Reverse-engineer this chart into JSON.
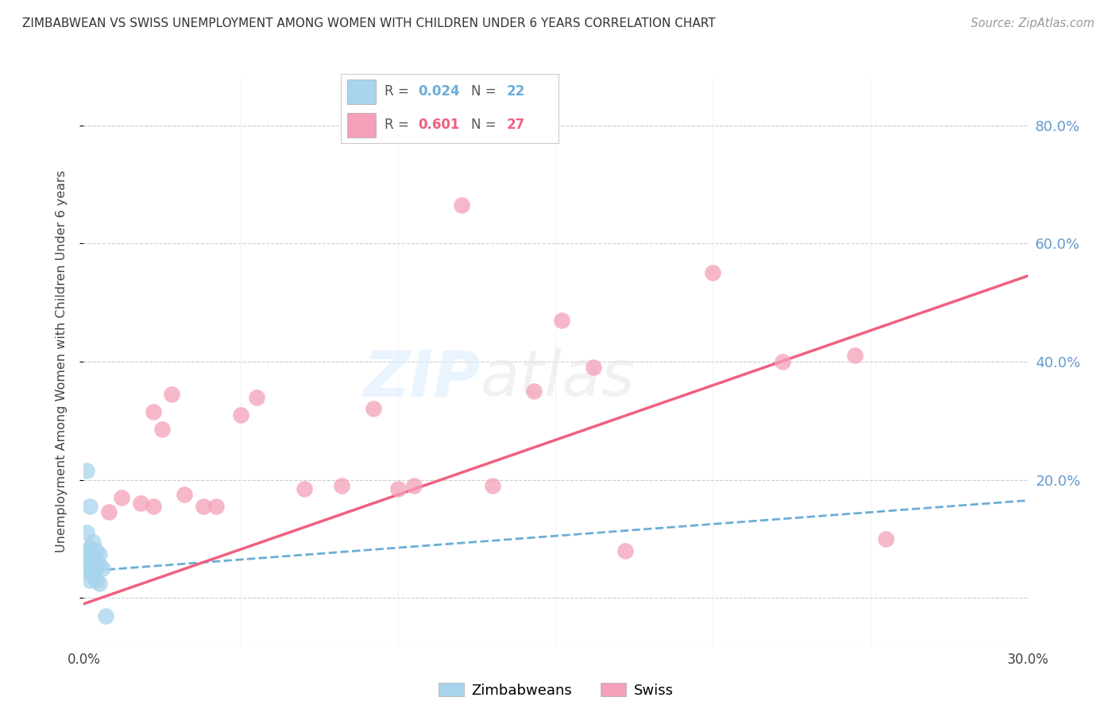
{
  "title": "ZIMBABWEAN VS SWISS UNEMPLOYMENT AMONG WOMEN WITH CHILDREN UNDER 6 YEARS CORRELATION CHART",
  "source": "Source: ZipAtlas.com",
  "ylabel": "Unemployment Among Women with Children Under 6 years",
  "xlim": [
    0.0,
    0.3
  ],
  "ylim": [
    -0.08,
    0.88
  ],
  "blue_color": "#A8D4ED",
  "pink_color": "#F4A0B8",
  "blue_line_color": "#6BAED6",
  "pink_line_color": "#F06080",
  "legend_label1": "Zimbabweans",
  "legend_label2": "Swiss",
  "watermark_zip": "ZIP",
  "watermark_atlas": "atlas",
  "zimbabwean_x": [
    0.001,
    0.001,
    0.001,
    0.001,
    0.001,
    0.002,
    0.002,
    0.002,
    0.002,
    0.002,
    0.003,
    0.003,
    0.003,
    0.003,
    0.004,
    0.004,
    0.004,
    0.005,
    0.005,
    0.005,
    0.006,
    0.007
  ],
  "zimbabwean_y": [
    0.215,
    0.11,
    0.08,
    0.06,
    0.045,
    0.155,
    0.085,
    0.07,
    0.05,
    0.03,
    0.095,
    0.075,
    0.06,
    0.04,
    0.08,
    0.06,
    0.03,
    0.075,
    0.055,
    0.025,
    0.05,
    -0.03
  ],
  "swiss_x": [
    0.008,
    0.012,
    0.018,
    0.022,
    0.022,
    0.025,
    0.028,
    0.032,
    0.038,
    0.042,
    0.05,
    0.055,
    0.07,
    0.082,
    0.092,
    0.1,
    0.105,
    0.12,
    0.13,
    0.143,
    0.152,
    0.162,
    0.172,
    0.2,
    0.222,
    0.245,
    0.255
  ],
  "swiss_y": [
    0.145,
    0.17,
    0.16,
    0.155,
    0.315,
    0.285,
    0.345,
    0.175,
    0.155,
    0.155,
    0.31,
    0.34,
    0.185,
    0.19,
    0.32,
    0.185,
    0.19,
    0.665,
    0.19,
    0.35,
    0.47,
    0.39,
    0.08,
    0.55,
    0.4,
    0.41,
    0.1
  ],
  "blue_trend_x": [
    0.0,
    0.3
  ],
  "blue_trend_y": [
    0.045,
    0.165
  ],
  "pink_trend_x": [
    0.0,
    0.3
  ],
  "pink_trend_y": [
    -0.01,
    0.545
  ]
}
